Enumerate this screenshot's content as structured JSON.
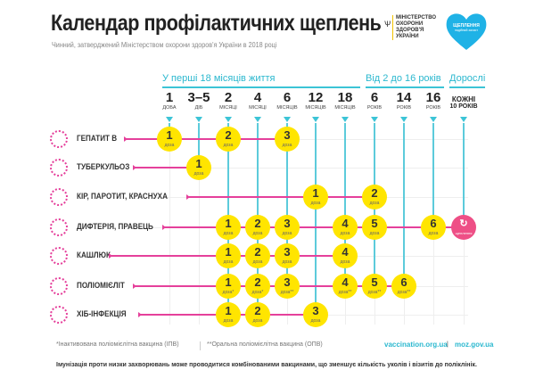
{
  "header": {
    "title": "Календар профілактичних щеплень",
    "subtitle": "Чинний, затверджений Міністерством охорони здоров'я України в 2018 році",
    "ministry": "МІНІСТЕРСТВО ОХОРОНИ ЗДОРОВ'Я УКРАЇНИ",
    "logo_text": "ЩЕПЛЕННЯ",
    "logo_sub": "надійний захист"
  },
  "groups": [
    "У перші 18 місяців життя",
    "Від 2 до 16 років",
    "Дорослі"
  ],
  "columns": [
    {
      "n": "1",
      "l": "ДОБА"
    },
    {
      "n": "3–5",
      "l": "ДІБ"
    },
    {
      "n": "2",
      "l": "МІСЯЦІ"
    },
    {
      "n": "4",
      "l": "МІСЯЦІ"
    },
    {
      "n": "6",
      "l": "МІСЯЦІВ"
    },
    {
      "n": "12",
      "l": "МІСЯЦІВ"
    },
    {
      "n": "18",
      "l": "МІСЯЦІВ"
    },
    {
      "n": "6",
      "l": "РОКІВ"
    },
    {
      "n": "14",
      "l": "РОКІВ"
    },
    {
      "n": "16",
      "l": "РОКІВ"
    },
    {
      "n": "КОЖНІ",
      "l": "10 РОКІВ"
    }
  ],
  "dose_label": "доза",
  "revaccination_label": "щеплення",
  "rows": [
    {
      "name": "ГЕПАТИТ B",
      "icon": "hepatitis-virus-icon",
      "doses": [
        {
          "col": 0,
          "n": "1"
        },
        {
          "col": 2,
          "n": "2"
        },
        {
          "col": 4,
          "n": "3"
        }
      ]
    },
    {
      "name": "ТУБЕРКУЛЬОЗ",
      "icon": "tuberculosis-bacteria-icon",
      "doses": [
        {
          "col": 1,
          "n": "1"
        }
      ]
    },
    {
      "name": "КІР, ПАРОТИТ, КРАСНУХА",
      "icon": "measles-virus-icon",
      "doses": [
        {
          "col": 5,
          "n": "1"
        },
        {
          "col": 7,
          "n": "2"
        }
      ]
    },
    {
      "name": "ДИФТЕРІЯ, ПРАВЕЦЬ",
      "icon": "diphtheria-bacteria-icon",
      "doses": [
        {
          "col": 2,
          "n": "1"
        },
        {
          "col": 3,
          "n": "2"
        },
        {
          "col": 4,
          "n": "3"
        },
        {
          "col": 6,
          "n": "4"
        },
        {
          "col": 7,
          "n": "5"
        },
        {
          "col": 9,
          "n": "6"
        }
      ],
      "revac_col": 10
    },
    {
      "name": "КАШЛЮК",
      "icon": "pertussis-bacteria-icon",
      "doses": [
        {
          "col": 2,
          "n": "1"
        },
        {
          "col": 3,
          "n": "2"
        },
        {
          "col": 4,
          "n": "3"
        },
        {
          "col": 6,
          "n": "4"
        }
      ]
    },
    {
      "name": "ПОЛІОМІЄЛІТ",
      "icon": "polio-virus-icon",
      "doses": [
        {
          "col": 2,
          "n": "1",
          "s": "*"
        },
        {
          "col": 3,
          "n": "2",
          "s": "*"
        },
        {
          "col": 4,
          "n": "3",
          "s": "**"
        },
        {
          "col": 6,
          "n": "4",
          "s": "**"
        },
        {
          "col": 7,
          "n": "5",
          "s": "**"
        },
        {
          "col": 8,
          "n": "6",
          "s": "**"
        }
      ]
    },
    {
      "name": "ХІБ-ІНФЕКЦІЯ",
      "icon": "hib-bacteria-icon",
      "doses": [
        {
          "col": 2,
          "n": "1"
        },
        {
          "col": 3,
          "n": "2"
        },
        {
          "col": 5,
          "n": "3"
        }
      ]
    }
  ],
  "footer": {
    "ipv": "*Інактивована поліомієлітна вакцина (ІПВ)",
    "opv": "**Оральна поліомієлітна вакцина (ОПВ)",
    "link1": "vaccination.org.ua",
    "link2": "moz.gov.ua",
    "note": "Імунізація проти низки захворювань може проводитися комбінованими вакцинами, що зменшує кількість уколів і візитів до поліклінік."
  },
  "colors": {
    "pink": "#e5409b",
    "cyan": "#3cc4d6",
    "yellow": "#ffe500"
  }
}
